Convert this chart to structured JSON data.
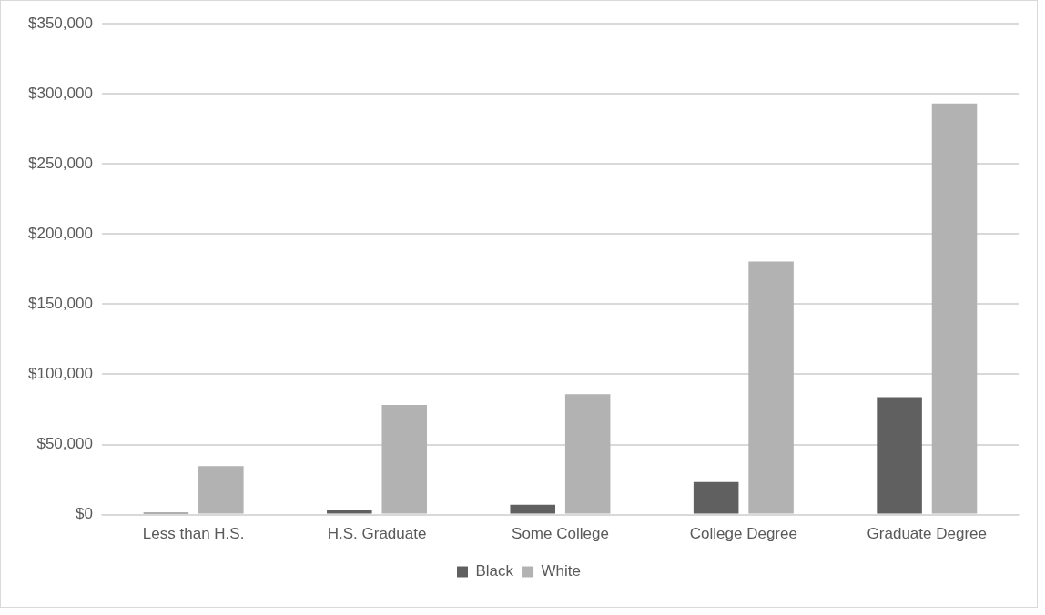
{
  "chart_data": {
    "type": "bar",
    "categories": [
      "Less than H.S.",
      "H.S. Graduate",
      "Some College",
      "College Degree",
      "Graduate Degree"
    ],
    "series": [
      {
        "name": "Black",
        "color": "#606060",
        "values": [
          1300,
          3000,
          7000,
          23200,
          83800
        ]
      },
      {
        "name": "White",
        "color": "#b2b2b2",
        "values": [
          34600,
          78200,
          85800,
          180400,
          293100
        ]
      }
    ],
    "ylim": [
      0,
      350000
    ],
    "yticks": [
      {
        "value": 0,
        "label": "$0"
      },
      {
        "value": 50000,
        "label": "$50,000"
      },
      {
        "value": 100000,
        "label": "$100,000"
      },
      {
        "value": 150000,
        "label": "$150,000"
      },
      {
        "value": 200000,
        "label": "$200,000"
      },
      {
        "value": 250000,
        "label": "$250,000"
      },
      {
        "value": 300000,
        "label": "$300,000"
      },
      {
        "value": 350000,
        "label": "$350,000"
      }
    ],
    "grid": "y",
    "legend": "bottom"
  }
}
